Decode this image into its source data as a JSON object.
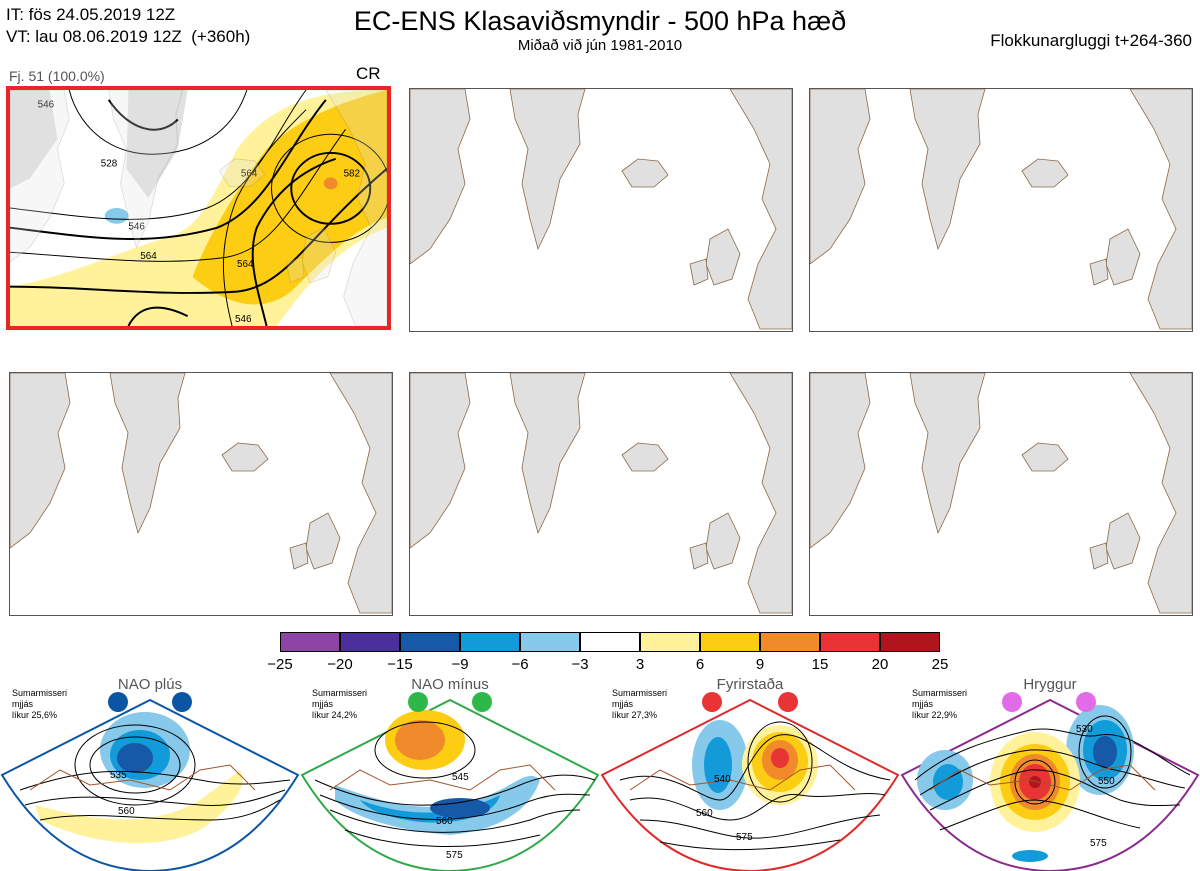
{
  "header": {
    "it_line": "IT: fös 24.05.2019 12Z",
    "vt_line": "VT: lau 08.06.2019 12Z  (+360h)",
    "title": "EC-ENS Klasaviðsmyndir - 500 hPa hæð",
    "subtitle": "Miðað við jún 1981-2010",
    "window": "Flokkunargluggi t+264-360"
  },
  "main_panel": {
    "label": "Fj. 51 (100.0%)",
    "code": "CR",
    "contour_labels": [
      "546",
      "564",
      "582",
      "528",
      "546",
      "564",
      "546",
      "564"
    ]
  },
  "colorbar": {
    "colors": [
      "#8e44a4",
      "#4b2f9b",
      "#1659a8",
      "#139ad8",
      "#86c9eb",
      "#ffffff",
      "#fff29a",
      "#fccd12",
      "#f08a2b",
      "#e83434",
      "#b0151d"
    ],
    "ticks": [
      "−25",
      "−20",
      "−15",
      "−9",
      "−6",
      "−3",
      "3",
      "6",
      "9",
      "15",
      "20",
      "25"
    ]
  },
  "regimes": [
    {
      "name": "NAO plús",
      "season": "Sumarmisseri",
      "measure": "mjjás",
      "prob": "líkur 25,6%",
      "color": "#0b56a4",
      "dot_color": "#0b56a4",
      "labels": [
        "535",
        "560"
      ]
    },
    {
      "name": "NAO mínus",
      "season": "Sumarmisseri",
      "measure": "mjjás",
      "prob": "líkur 24,2%",
      "color": "#2fa84a",
      "dot_color": "#2fb84a",
      "labels": [
        "545",
        "560",
        "575"
      ]
    },
    {
      "name": "Fyrirstaða",
      "season": "Sumarmisseri",
      "measure": "mjjás",
      "prob": "líkur 27,3%",
      "color": "#e02a2a",
      "dot_color": "#e83434",
      "labels": [
        "540",
        "560",
        "575"
      ]
    },
    {
      "name": "Hryggur",
      "season": "Sumarmisseri",
      "measure": "mjjás",
      "prob": "líkur 22,9%",
      "color": "#8b2a8e",
      "dot_color": "#e26ce8",
      "labels": [
        "530",
        "550",
        "575"
      ]
    }
  ]
}
